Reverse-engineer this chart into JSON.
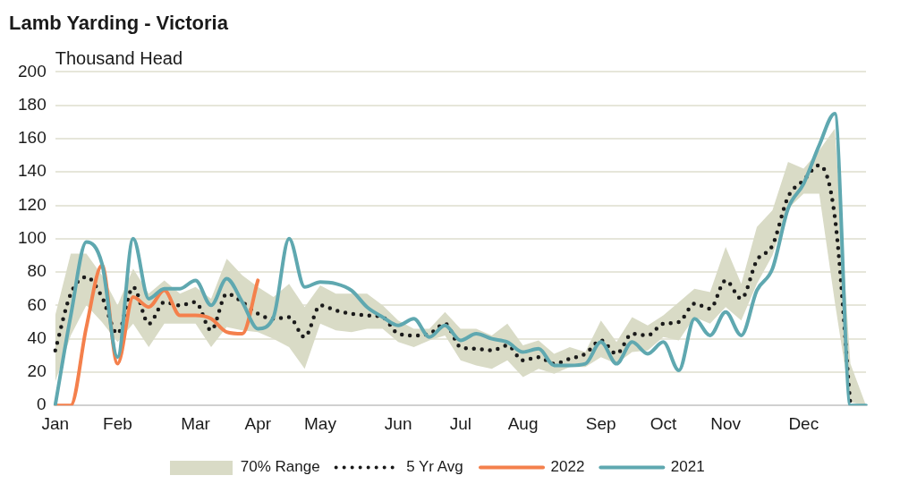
{
  "chart_data": {
    "type": "line",
    "title": "Lamb Yarding - Victoria",
    "ylabel": "Thousand Head",
    "categories": [
      "Jan",
      null,
      null,
      null,
      "Feb",
      null,
      null,
      null,
      null,
      "Mar",
      null,
      null,
      null,
      "Apr",
      null,
      null,
      null,
      "May",
      null,
      null,
      null,
      null,
      "Jun",
      null,
      null,
      null,
      "Jul",
      null,
      null,
      null,
      "Aug",
      null,
      null,
      null,
      null,
      "Sep",
      null,
      null,
      null,
      "Oct",
      null,
      null,
      null,
      "Nov",
      null,
      null,
      null,
      null,
      "Dec",
      null,
      null,
      null,
      null
    ],
    "annotations": [
      "70% Range"
    ],
    "series": [
      {
        "name": "5 Yr Avg",
        "type": "line",
        "line_style": "dotted",
        "color": "#1a1a1a",
        "values": [
          33,
          67,
          77,
          65,
          43,
          71,
          49,
          62,
          60,
          62,
          45,
          67,
          62,
          55,
          52,
          53,
          41,
          60,
          57,
          55,
          54,
          53,
          43,
          42,
          43,
          49,
          35,
          34,
          33,
          36,
          27,
          29,
          25,
          28,
          31,
          39,
          31,
          43,
          42,
          49,
          50,
          61,
          58,
          75,
          64,
          87,
          96,
          125,
          135,
          144,
          113,
          0,
          null
        ],
        "upper": [
          54,
          91,
          91,
          78,
          60,
          82,
          67,
          75,
          67,
          71,
          64,
          88,
          78,
          71,
          65,
          73,
          59,
          72,
          67,
          67,
          67,
          60,
          51,
          46,
          46,
          56,
          46,
          46,
          42,
          49,
          36,
          39,
          31,
          35,
          32,
          51,
          38,
          53,
          48,
          54,
          62,
          70,
          68,
          95,
          73,
          107,
          117,
          146,
          142,
          153,
          166,
          25,
          0
        ],
        "lower": [
          14,
          42,
          60,
          50,
          38,
          49,
          35,
          49,
          49,
          49,
          35,
          47,
          45,
          44,
          40,
          35,
          22,
          49,
          45,
          44,
          46,
          46,
          38,
          35,
          39,
          42,
          27,
          24,
          22,
          27,
          17,
          22,
          19,
          23,
          23,
          29,
          25,
          32,
          33,
          41,
          39,
          53,
          49,
          59,
          51,
          73,
          90,
          118,
          127,
          127,
          62,
          2,
          0
        ]
      },
      {
        "name": "2022",
        "type": "line",
        "line_style": "solid",
        "color": "#f4804c",
        "values": [
          0,
          0,
          47,
          84,
          25,
          65,
          59,
          69,
          54,
          54,
          52,
          44,
          43,
          75,
          null,
          null,
          null,
          null,
          null,
          null,
          null,
          null,
          null,
          null,
          null,
          null,
          null,
          null,
          null,
          null,
          null,
          null,
          null,
          null,
          null,
          null,
          null,
          null,
          null,
          null,
          null,
          null,
          null,
          null,
          null,
          null,
          null,
          null,
          null,
          null,
          null,
          null,
          null
        ]
      },
      {
        "name": "2021",
        "type": "line",
        "line_style": "solid",
        "color": "#5fa8b0",
        "values": [
          0,
          54,
          98,
          85,
          29,
          100,
          64,
          70,
          70,
          75,
          60,
          76,
          62,
          46,
          53,
          100,
          71,
          74,
          73,
          69,
          59,
          53,
          48,
          52,
          41,
          48,
          39,
          43,
          40,
          38,
          32,
          34,
          24,
          24,
          25,
          38,
          25,
          38,
          31,
          38,
          21,
          52,
          42,
          56,
          42,
          69,
          82,
          118,
          133,
          156,
          175,
          0,
          0
        ]
      }
    ],
    "ylim": [
      0,
      200
    ],
    "yticks": [
      0,
      20,
      40,
      60,
      80,
      100,
      120,
      140,
      160,
      180,
      200
    ],
    "grid": "y",
    "legend": "bottom",
    "marker": "none"
  }
}
